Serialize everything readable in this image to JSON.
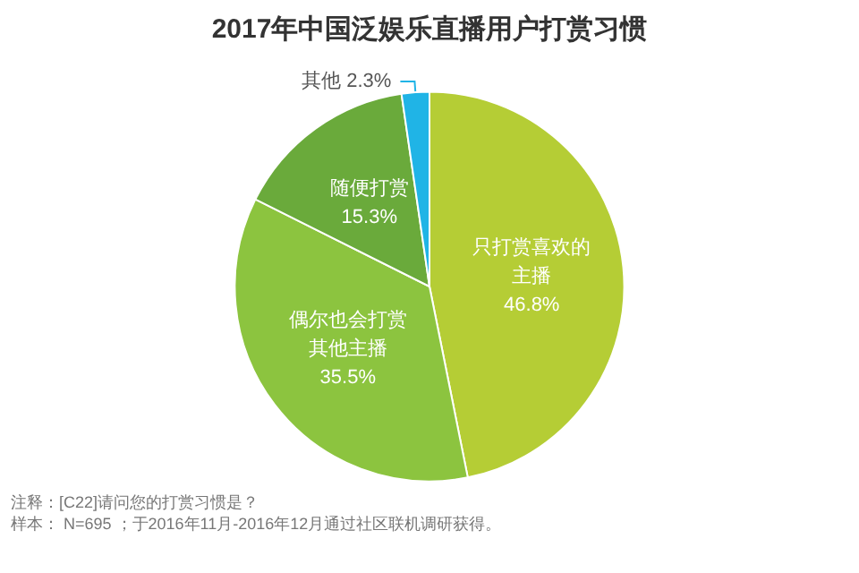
{
  "chart_data": {
    "type": "pie",
    "title": "2017年中国泛娱乐直播用户打赏习惯",
    "categories": [
      "只打赏喜欢的主播",
      "偶尔也会打赏其他主播",
      "随便打赏",
      "其他"
    ],
    "values": [
      46.8,
      35.5,
      15.3,
      2.3
    ],
    "value_labels": [
      "46.8%",
      "35.5%",
      "15.3%",
      "2.3%"
    ],
    "colors": [
      "#b5cd35",
      "#8cc43f",
      "#6aaa3b",
      "#20b4e6"
    ],
    "annotations": [
      "注释：[C22]请问您的打赏习惯是？",
      "样本： N=695 ；于2016年11月-2016年12月通过社区联机调研获得。"
    ],
    "legend": false
  }
}
